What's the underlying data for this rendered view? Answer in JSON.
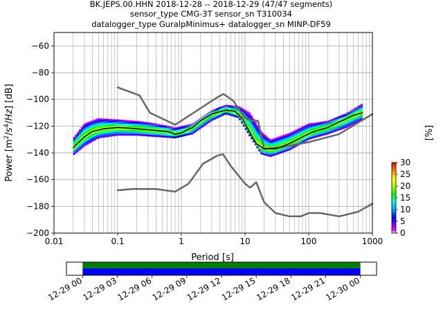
{
  "title_lines": [
    "BK.JEPS.00.HHN   2018-12-28 -- 2018-12-29  (47/47 segments)",
    "sensor_type CMG-3T sensor_sn T310034",
    "datalogger_type GuralpMinimus+ datalogger_sn MINP-DF59"
  ],
  "chart_data": {
    "type": "heatmap",
    "xlabel": "Period [s]",
    "ylabel": "Power [m²/s⁴/Hz] [dB]",
    "x_scale": "log",
    "xlim": [
      0.01,
      1000
    ],
    "ylim": [
      -200,
      -50
    ],
    "x_ticks": [
      {
        "value": 0.01,
        "label": "0.01"
      },
      {
        "value": 0.1,
        "label": "0.1"
      },
      {
        "value": 1,
        "label": "1"
      },
      {
        "value": 10,
        "label": "10"
      },
      {
        "value": 100,
        "label": "100"
      },
      {
        "value": 1000,
        "label": "1000"
      }
    ],
    "y_ticks": [
      {
        "value": -60,
        "label": "−60"
      },
      {
        "value": -80,
        "label": "−80"
      },
      {
        "value": -100,
        "label": "−100"
      },
      {
        "value": -120,
        "label": "−120"
      },
      {
        "value": -140,
        "label": "−140"
      },
      {
        "value": -160,
        "label": "−160"
      },
      {
        "value": -180,
        "label": "−180"
      },
      {
        "value": -200,
        "label": "−200"
      }
    ],
    "grid": true,
    "series": [
      {
        "role": "noise-model-high",
        "points": [
          [
            0.1,
            -91
          ],
          [
            0.22,
            -97
          ],
          [
            0.32,
            -110
          ],
          [
            0.8,
            -119
          ],
          [
            3.8,
            -98
          ],
          [
            4.6,
            -96
          ],
          [
            6.5,
            -101
          ],
          [
            10,
            -114
          ],
          [
            13,
            -116
          ],
          [
            16,
            -116
          ],
          [
            20,
            -137
          ],
          [
            35,
            -136
          ],
          [
            100,
            -132
          ],
          [
            300,
            -126
          ],
          [
            1000,
            -111
          ]
        ]
      },
      {
        "role": "noise-model-low",
        "points": [
          [
            0.1,
            -168
          ],
          [
            0.17,
            -167
          ],
          [
            0.4,
            -167
          ],
          [
            0.8,
            -169
          ],
          [
            1.3,
            -163
          ],
          [
            2.2,
            -148
          ],
          [
            3.7,
            -142
          ],
          [
            4.5,
            -141
          ],
          [
            6,
            -150
          ],
          [
            10,
            -163
          ],
          [
            12,
            -166
          ],
          [
            15,
            -162
          ],
          [
            20,
            -177
          ],
          [
            30,
            -185
          ],
          [
            50,
            -187.5
          ],
          [
            75,
            -187.5
          ],
          [
            100,
            -185
          ],
          [
            150,
            -185
          ],
          [
            300,
            -187.5
          ],
          [
            600,
            -184
          ],
          [
            1000,
            -178
          ]
        ]
      },
      {
        "role": "mean-psd",
        "points": [
          [
            0.02,
            -136
          ],
          [
            0.03,
            -128
          ],
          [
            0.04,
            -124
          ],
          [
            0.06,
            -122
          ],
          [
            0.1,
            -121
          ],
          [
            0.2,
            -122
          ],
          [
            0.35,
            -123
          ],
          [
            0.6,
            -124
          ],
          [
            0.8,
            -126
          ],
          [
            1,
            -125
          ],
          [
            1.5,
            -121
          ],
          [
            2,
            -116
          ],
          [
            3,
            -111
          ],
          [
            5,
            -108
          ],
          [
            7,
            -109
          ],
          [
            9,
            -114
          ],
          [
            12,
            -125
          ],
          [
            15,
            -133
          ],
          [
            20,
            -137
          ],
          [
            30,
            -137
          ],
          [
            50,
            -133
          ],
          [
            80,
            -128
          ],
          [
            120,
            -124
          ],
          [
            200,
            -121
          ],
          [
            300,
            -117
          ],
          [
            500,
            -112
          ],
          [
            700,
            -110
          ]
        ]
      }
    ],
    "psd_band_percent": {
      "upper": [
        [
          0.02,
          -129
        ],
        [
          0.03,
          -118
        ],
        [
          0.05,
          -114
        ],
        [
          0.1,
          -115
        ],
        [
          0.2,
          -116
        ],
        [
          0.4,
          -118
        ],
        [
          0.8,
          -121
        ],
        [
          1.5,
          -118
        ],
        [
          3,
          -108
        ],
        [
          5,
          -104
        ],
        [
          8,
          -105
        ],
        [
          12,
          -110
        ],
        [
          18,
          -124
        ],
        [
          25,
          -130
        ],
        [
          50,
          -125
        ],
        [
          100,
          -118
        ],
        [
          200,
          -116
        ],
        [
          400,
          -110
        ],
        [
          700,
          -103
        ]
      ],
      "lower": [
        [
          0.02,
          -142
        ],
        [
          0.03,
          -135
        ],
        [
          0.05,
          -129
        ],
        [
          0.1,
          -127
        ],
        [
          0.2,
          -127
        ],
        [
          0.4,
          -128
        ],
        [
          0.8,
          -129
        ],
        [
          1.5,
          -126
        ],
        [
          3,
          -116
        ],
        [
          5,
          -111
        ],
        [
          8,
          -114
        ],
        [
          12,
          -128
        ],
        [
          18,
          -141
        ],
        [
          25,
          -143
        ],
        [
          50,
          -138
        ],
        [
          100,
          -130
        ],
        [
          200,
          -126
        ],
        [
          400,
          -121
        ],
        [
          700,
          -115
        ]
      ]
    },
    "colorbar": {
      "label": "[%]",
      "min": 0,
      "max": 30,
      "ticks": [
        0,
        5,
        10,
        15,
        20,
        25,
        30
      ],
      "colormap": "pqlx"
    },
    "timeline": {
      "tick_labels": [
        "12-29 00",
        "12-29 03",
        "12-29 06",
        "12-29 09",
        "12-29 12",
        "12-29 15",
        "12-29 18",
        "12-29 21",
        "12-30 00"
      ],
      "start_hour": -1.4,
      "end_hour": 25.4,
      "data_start_hour": 0,
      "data_end_hour": 24,
      "bar_colors": [
        "#007f00",
        "#0000ff"
      ]
    }
  },
  "colors": {
    "mean_line": "#000000",
    "noise_models": "#666666",
    "grid": "#b0b0b0"
  }
}
